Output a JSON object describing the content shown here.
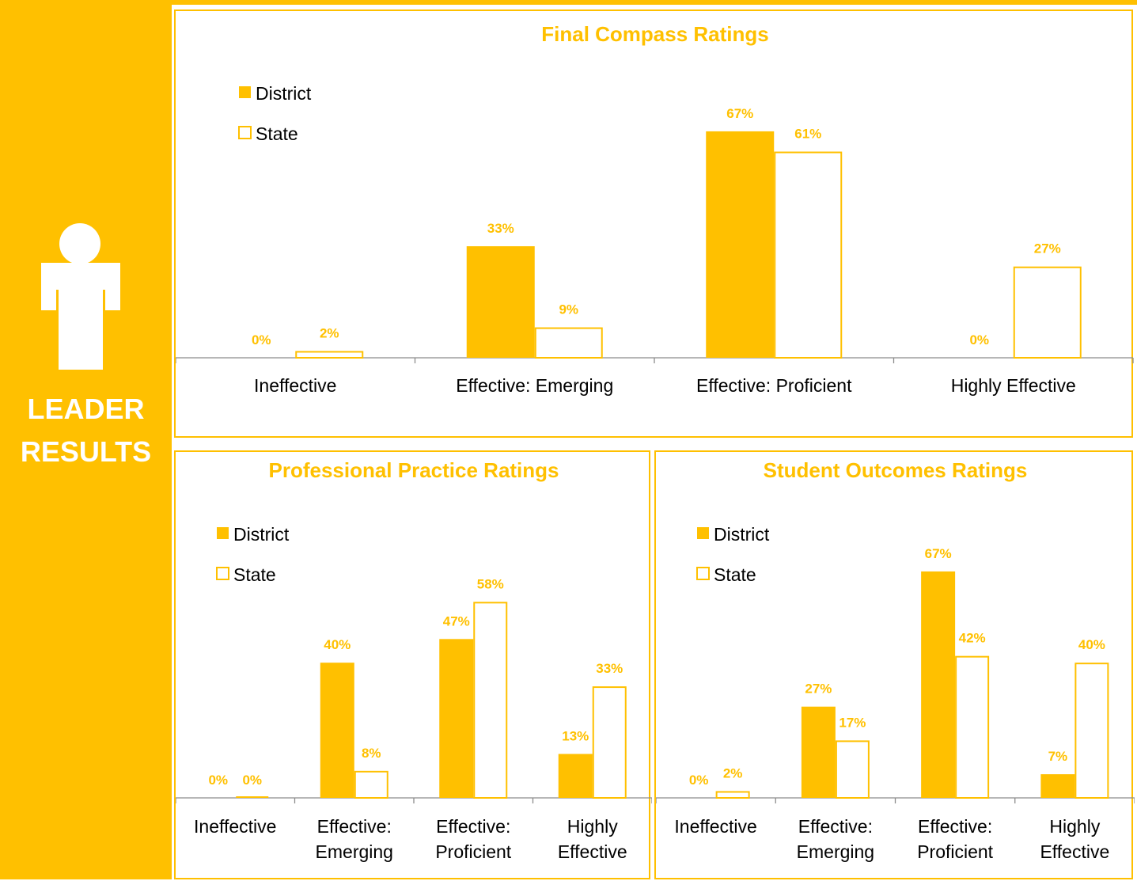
{
  "sidebar": {
    "title_line1": "LEADER",
    "title_line2": "RESULTS",
    "icon": "person-icon"
  },
  "colors": {
    "accent": "#FFC000",
    "background": "#FFFFFF",
    "text": "#000000"
  },
  "chart_data": [
    {
      "id": "final",
      "type": "bar",
      "title": "Final Compass Ratings",
      "xlabel": "",
      "ylabel": "",
      "ylim": [
        0,
        70
      ],
      "grid": false,
      "legend": "top-left",
      "categories": [
        [
          "Ineffective"
        ],
        [
          "Effective: Emerging"
        ],
        [
          "Effective: Proficient"
        ],
        [
          "Highly Effective"
        ]
      ],
      "series": [
        {
          "name": "District",
          "style": "filled",
          "values": [
            0,
            33,
            67,
            0
          ],
          "labels": [
            "0%",
            "33%",
            "67%",
            "0%"
          ]
        },
        {
          "name": "State",
          "style": "outline",
          "values": [
            2,
            9,
            61,
            27
          ],
          "labels": [
            "2%",
            "9%",
            "61%",
            "27%"
          ]
        }
      ]
    },
    {
      "id": "practice",
      "type": "bar",
      "title": "Professional Practice Ratings",
      "xlabel": "",
      "ylabel": "",
      "ylim": [
        0,
        70
      ],
      "grid": false,
      "legend": "top-left",
      "categories": [
        [
          "Ineffective"
        ],
        [
          "Effective:",
          "Emerging"
        ],
        [
          "Effective:",
          "Proficient"
        ],
        [
          "Highly",
          "Effective"
        ]
      ],
      "series": [
        {
          "name": "District",
          "style": "filled",
          "values": [
            0,
            40,
            47,
            13
          ],
          "labels": [
            "0%",
            "40%",
            "47%",
            "13%"
          ]
        },
        {
          "name": "State",
          "style": "outline",
          "values": [
            0,
            8,
            58,
            33
          ],
          "labels": [
            "0%",
            "8%",
            "58%",
            "33%"
          ]
        }
      ]
    },
    {
      "id": "outcomes",
      "type": "bar",
      "title": "Student Outcomes Ratings",
      "xlabel": "",
      "ylabel": "",
      "ylim": [
        0,
        70
      ],
      "grid": false,
      "legend": "top-left",
      "categories": [
        [
          "Ineffective"
        ],
        [
          "Effective:",
          "Emerging"
        ],
        [
          "Effective:",
          "Proficient"
        ],
        [
          "Highly",
          "Effective"
        ]
      ],
      "series": [
        {
          "name": "District",
          "style": "filled",
          "values": [
            0,
            27,
            67,
            7
          ],
          "labels": [
            "0%",
            "27%",
            "67%",
            "7%"
          ]
        },
        {
          "name": "State",
          "style": "outline",
          "values": [
            2,
            17,
            42,
            40
          ],
          "labels": [
            "2%",
            "17%",
            "42%",
            "40%"
          ]
        }
      ]
    }
  ]
}
